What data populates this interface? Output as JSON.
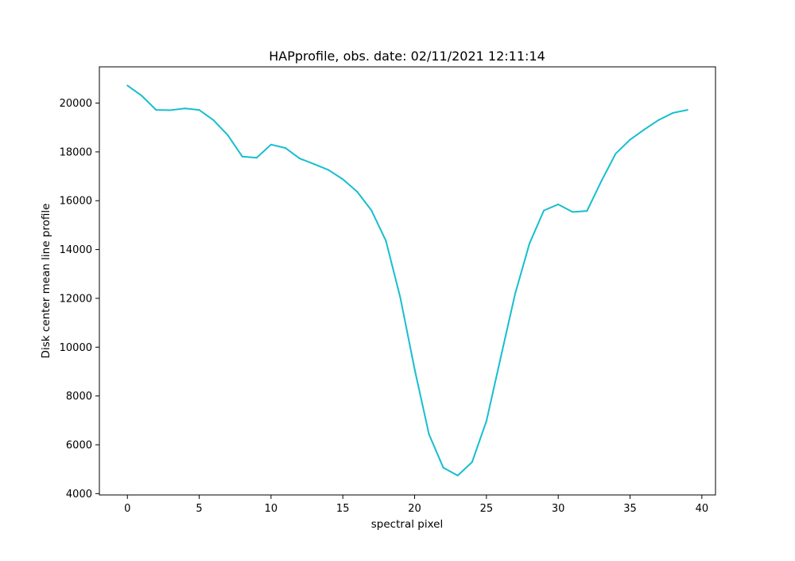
{
  "chart_data": {
    "type": "line",
    "title": "HAPprofile, obs. date: 02/11/2021 12:11:14",
    "xlabel": "spectral pixel",
    "ylabel": "Disk center mean line profile",
    "xlim": [
      -1.95,
      40.95
    ],
    "ylim": [
      3945,
      21485
    ],
    "xticks": [
      0,
      5,
      10,
      15,
      20,
      25,
      30,
      35,
      40
    ],
    "yticks": [
      4000,
      6000,
      8000,
      10000,
      12000,
      14000,
      16000,
      18000,
      20000
    ],
    "grid": false,
    "line_color": "#17becf",
    "series": [
      {
        "x": [
          0,
          1,
          2,
          3,
          4,
          5,
          6,
          7,
          8,
          9,
          10,
          11,
          12,
          13,
          14,
          15,
          16,
          17,
          18,
          19,
          20,
          21,
          22,
          23,
          24,
          25,
          26,
          27,
          28,
          29,
          30,
          31,
          32,
          33,
          34,
          35,
          36,
          37,
          38,
          39
        ],
        "values": [
          20720,
          20300,
          19720,
          19710,
          19780,
          19720,
          19300,
          18680,
          17810,
          17760,
          18300,
          18160,
          17730,
          17500,
          17260,
          16880,
          16370,
          15600,
          14360,
          12040,
          9100,
          6430,
          5060,
          4740,
          5290,
          6970,
          9590,
          12190,
          14250,
          15600,
          15850,
          15540,
          15580,
          16800,
          17930,
          18500,
          18920,
          19310,
          19600,
          19720
        ]
      }
    ]
  }
}
